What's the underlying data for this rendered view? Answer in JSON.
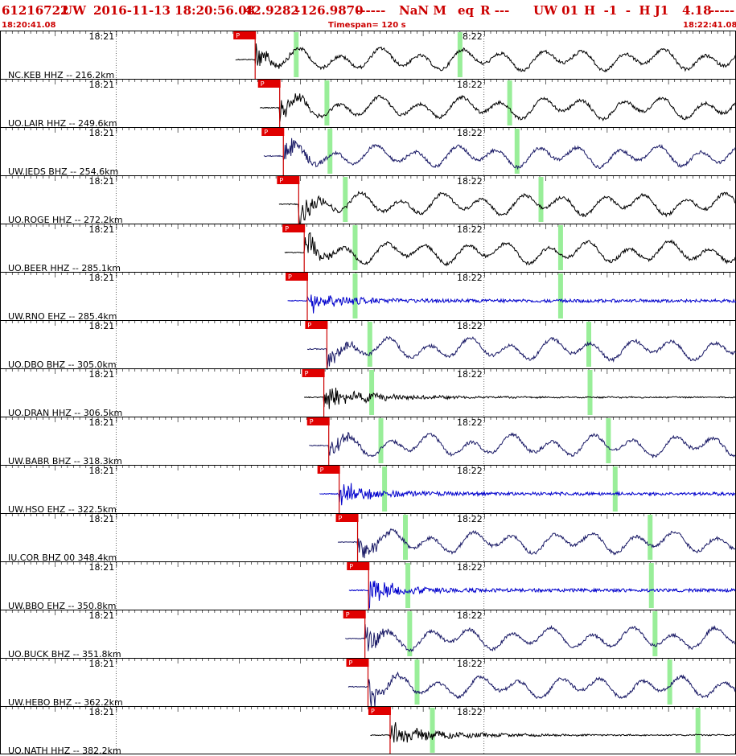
{
  "header": {
    "event_id": "61216722",
    "network": "UW",
    "datetime": "2016-11-13 18:20:56.08",
    "lat": "42.9282",
    "lon": "-126.9870",
    "dashes": "------",
    "magnitude": "NaN M",
    "event_type": "eq",
    "review": "R ---",
    "source": "UW 01",
    "flags": "H  -1  -  H J1",
    "value": "4.18",
    "tail": "-----"
  },
  "subheader": {
    "start_time": "18:20:41.08",
    "timespan": "Timespan= 120 s",
    "end_time": "18:22:41.08"
  },
  "colors": {
    "header_text": "#cc0000",
    "pick_box": "#e00000",
    "pick_line": "#cc0000",
    "s_marker": "#99ee99",
    "trace_black": "#000000",
    "trace_navy": "#1a1a66",
    "trace_blue": "#0000cc"
  },
  "chart_data": {
    "type": "line",
    "x_unit": "seconds after 18:20:41.08",
    "xlim": [
      0,
      120
    ],
    "tick_labels": [
      "18:21",
      "18:22"
    ],
    "tick_seconds": [
      18.92,
      78.92
    ],
    "pick_label": "P",
    "traces": [
      {
        "station": "NC.KEB HHZ -- 216.2km",
        "p_time": 41.6,
        "s_time": 48.3,
        "s2_time": 75.0,
        "color": "black",
        "style": "long"
      },
      {
        "station": "UO.LAIR HHZ -- 249.6km",
        "p_time": 45.6,
        "s_time": 53.3,
        "s2_time": 83.1,
        "color": "black",
        "style": "long"
      },
      {
        "station": "UW.JEDS BHZ -- 254.6km",
        "p_time": 46.2,
        "s_time": 53.8,
        "s2_time": 84.3,
        "color": "navy",
        "style": "long"
      },
      {
        "station": "UO.ROGE HHZ -- 272.2km",
        "p_time": 48.7,
        "s_time": 56.3,
        "s2_time": 88.2,
        "color": "black",
        "style": "long"
      },
      {
        "station": "UO.BEER HHZ -- 285.1km",
        "p_time": 49.6,
        "s_time": 57.9,
        "s2_time": 91.4,
        "color": "black",
        "style": "long"
      },
      {
        "station": "UW.RNO EHZ -- 285.4km",
        "p_time": 50.1,
        "s_time": 57.9,
        "s2_time": 91.4,
        "color": "blue",
        "style": "short"
      },
      {
        "station": "UO.DBO BHZ -- 305.0km",
        "p_time": 53.3,
        "s_time": 60.3,
        "s2_time": 96.0,
        "color": "navy",
        "style": "long"
      },
      {
        "station": "UO.DRAN HHZ -- 306.5km",
        "p_time": 52.8,
        "s_time": 60.6,
        "s2_time": 96.2,
        "color": "black",
        "style": "decay"
      },
      {
        "station": "UW.BABR BHZ -- 318.3km",
        "p_time": 53.6,
        "s_time": 62.1,
        "s2_time": 99.2,
        "color": "navy",
        "style": "long"
      },
      {
        "station": "UW.HSO EHZ -- 322.5km",
        "p_time": 55.3,
        "s_time": 62.7,
        "s2_time": 100.3,
        "color": "blue",
        "style": "short"
      },
      {
        "station": "IU.COR BHZ 00 348.4km",
        "p_time": 58.3,
        "s_time": 66.1,
        "s2_time": 106.0,
        "color": "navy",
        "style": "long"
      },
      {
        "station": "UW.BBO EHZ -- 350.8km",
        "p_time": 60.1,
        "s_time": 66.5,
        "s2_time": 106.2,
        "color": "blue",
        "style": "short"
      },
      {
        "station": "UO.BUCK BHZ -- 351.8km",
        "p_time": 59.5,
        "s_time": 66.8,
        "s2_time": 106.8,
        "color": "navy",
        "style": "long"
      },
      {
        "station": "UW.HEBO BHZ -- 362.2km",
        "p_time": 60.0,
        "s_time": 68.0,
        "s2_time": 109.2,
        "color": "navy",
        "style": "long"
      },
      {
        "station": "UO.NATH HHZ -- 382.2km",
        "p_time": 63.6,
        "s_time": 70.5,
        "s2_time": 113.8,
        "color": "black",
        "style": "decay"
      }
    ]
  }
}
